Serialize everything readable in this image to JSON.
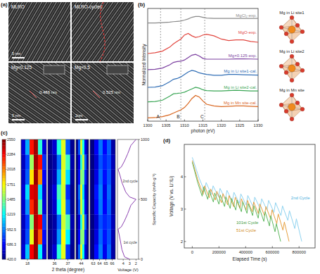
{
  "images": {
    "label": "(a)",
    "tiles": [
      {
        "label": "MLRO",
        "scale_bar": "5 nm"
      },
      {
        "label": "MLRO-cycled"
      },
      {
        "label": "Mg×0.125",
        "spacing": "0.486 nm",
        "scale_bar": "5 nm"
      },
      {
        "label": "Mg×0.5",
        "spacing": "0.525 nm",
        "scale_bar": "2nm"
      }
    ]
  },
  "chart_data": [
    {
      "type": "line",
      "title": "(b)",
      "x_label": "photon (eV)",
      "y_label": "Normalized Intensity",
      "x": [
        1300,
        1302,
        1304,
        1306,
        1307,
        1308,
        1309,
        1310,
        1311,
        1312,
        1313,
        1314,
        1315,
        1316,
        1318,
        1320,
        1322,
        1324,
        1326,
        1328,
        1330
      ],
      "xlim": [
        1300,
        1330
      ],
      "xticks": [
        1300,
        1305,
        1310,
        1315,
        1320,
        1325,
        1330
      ],
      "ylim": [
        0,
        7
      ],
      "yticks": [],
      "tick_labels": "x",
      "series": [
        {
          "name": "MgCl₂-exp.",
          "color": "#8a8a8a",
          "values": [
            6.1,
            6.1,
            6.12,
            6.15,
            6.18,
            6.2,
            6.22,
            6.28,
            6.35,
            6.45,
            6.5,
            6.5,
            6.45,
            6.4,
            6.38,
            6.38,
            6.38,
            6.38,
            6.38,
            6.38,
            6.38
          ]
        },
        {
          "name": "MgO-exp.",
          "color": "#e2463f",
          "values": [
            4.2,
            4.25,
            4.35,
            4.6,
            4.8,
            4.95,
            5.1,
            5.35,
            5.45,
            5.3,
            5.2,
            5.25,
            5.35,
            5.4,
            5.3,
            5.1,
            5.0,
            5.05,
            5.05,
            4.95,
            4.9
          ]
        },
        {
          "name": "Mg×0.125-exp.",
          "color": "#7b3fa0",
          "values": [
            3.2,
            3.22,
            3.3,
            3.5,
            3.65,
            3.7,
            3.72,
            3.8,
            3.95,
            4.1,
            4.15,
            4.05,
            3.9,
            3.85,
            3.85,
            3.85,
            3.85,
            3.87,
            3.87,
            3.86,
            3.85
          ]
        },
        {
          "name": "Mg in Li site1-cal.",
          "color": "#2f6db5",
          "values": [
            2.1,
            2.12,
            2.2,
            2.45,
            2.6,
            2.65,
            2.75,
            2.9,
            3.05,
            3.15,
            3.1,
            3.0,
            2.95,
            2.9,
            2.85,
            2.85,
            2.9,
            2.9,
            2.88,
            2.87,
            2.86
          ]
        },
        {
          "name": "Mg in Li site2-cal.",
          "color": "#3aa655",
          "values": [
            1.2,
            1.22,
            1.3,
            1.55,
            1.7,
            1.72,
            1.75,
            1.8,
            1.9,
            2.0,
            2.1,
            2.05,
            1.95,
            1.9,
            1.88,
            1.88,
            1.9,
            1.92,
            1.9,
            1.88,
            1.88
          ]
        },
        {
          "name": "Mg in Mn site-cal.",
          "color": "#d9661f",
          "values": [
            0.2,
            0.22,
            0.28,
            0.4,
            0.5,
            0.6,
            0.7,
            0.85,
            1.1,
            1.4,
            1.6,
            1.5,
            1.25,
            1.05,
            0.95,
            0.9,
            0.92,
            0.95,
            0.95,
            0.92,
            0.9
          ]
        }
      ],
      "vlines": [
        {
          "x": 1303.5,
          "label": "A"
        },
        {
          "x": 1309,
          "label": "B"
        },
        {
          "x": 1315.5,
          "label": "C"
        }
      ],
      "structures": [
        "Mg in Li site1",
        "Mg in Li site2",
        "Mg in Mn site"
      ]
    },
    {
      "type": "heatmap",
      "title": "(c)",
      "x_label": "2 theta (degree)",
      "ylim": [
        0,
        1000
      ],
      "y_edges": [
        0,
        125,
        250,
        375,
        500,
        625,
        750,
        875,
        1000
      ],
      "windows": [
        {
          "xlim": [
            17.5,
            19.5
          ],
          "x_edges": [
            17.5,
            17.83,
            18.17,
            18.5,
            18.83,
            19.17,
            19.5
          ],
          "xticks": [
            18
          ],
          "cells": [
            [
              600,
              1100,
              2300,
              2500,
              1200,
              600
            ],
            [
              560,
              850,
              1700,
              2500,
              2100,
              700
            ],
            [
              550,
              800,
              1500,
              2450,
              2300,
              800
            ],
            [
              580,
              1000,
              2200,
              2450,
              1400,
              620
            ],
            [
              600,
              1150,
              2350,
              2400,
              1150,
              600
            ],
            [
              560,
              880,
              1800,
              2500,
              2000,
              680
            ],
            [
              550,
              820,
              1550,
              2480,
              2250,
              780
            ],
            [
              600,
              1050,
              2250,
              2480,
              1300,
              620
            ]
          ]
        },
        {
          "xlim": [
            35.5,
            37.5
          ],
          "x_edges": [
            35.5,
            35.83,
            36.17,
            36.5,
            36.83,
            37.17,
            37.5
          ],
          "xticks": [
            36,
            37
          ],
          "cells": [
            [
              450,
              600,
              1300,
              1700,
              800,
              460
            ],
            [
              440,
              520,
              1000,
              1750,
              1200,
              480
            ],
            [
              440,
              500,
              900,
              1650,
              1400,
              520
            ],
            [
              450,
              580,
              1250,
              1700,
              900,
              460
            ],
            [
              460,
              620,
              1350,
              1650,
              780,
              450
            ],
            [
              440,
              530,
              1050,
              1700,
              1150,
              480
            ],
            [
              440,
              500,
              920,
              1680,
              1350,
              510
            ],
            [
              450,
              590,
              1280,
              1690,
              880,
              460
            ]
          ]
        },
        {
          "xlim": [
            43.5,
            44.7
          ],
          "x_edges": [
            43.5,
            43.7,
            43.9,
            44.1,
            44.3,
            44.5,
            44.7
          ],
          "xticks": [
            44
          ],
          "cells": [
            [
              470,
              900,
              1700,
              1200,
              600,
              450
            ],
            [
              450,
              700,
              1500,
              1500,
              750,
              450
            ],
            [
              440,
              620,
              1300,
              1650,
              900,
              460
            ],
            [
              460,
              850,
              1650,
              1300,
              650,
              450
            ],
            [
              470,
              920,
              1700,
              1150,
              600,
              450
            ],
            [
              450,
              720,
              1520,
              1450,
              760,
              450
            ],
            [
              440,
              640,
              1320,
              1620,
              880,
              460
            ],
            [
              460,
              860,
              1660,
              1250,
              640,
              450
            ]
          ]
        },
        {
          "xlim": [
            62.5,
            66.5
          ],
          "x_edges": [
            62.5,
            63.17,
            63.83,
            64.5,
            65.17,
            65.83,
            66.5
          ],
          "xticks": [
            63,
            64,
            65,
            66
          ],
          "cells": [
            [
              430,
              700,
              950,
              650,
              900,
              500
            ],
            [
              430,
              620,
              900,
              720,
              850,
              520
            ],
            [
              430,
              580,
              850,
              760,
              820,
              540
            ],
            [
              430,
              680,
              940,
              680,
              880,
              500
            ],
            [
              430,
              720,
              960,
              640,
              910,
              500
            ],
            [
              430,
              630,
              910,
              710,
              860,
              520
            ],
            [
              430,
              590,
              860,
              750,
              830,
              540
            ],
            [
              430,
              670,
              930,
              690,
              880,
              500
            ]
          ]
        }
      ],
      "colorbar": {
        "range": [
          420,
          2550
        ],
        "ticks": [
          {
            "value": 420,
            "label": "420.0"
          },
          686.3,
          952.5,
          1219,
          1485,
          1751,
          2018,
          2284,
          2550
        ]
      }
    },
    {
      "type": "line",
      "x_label": "Voltage (V)",
      "y_label": "Specific Capacity (mAh·g⁻¹)",
      "xlim": [
        4.9,
        1.6
      ],
      "xticks": [
        2,
        3,
        4
      ],
      "ylim": [
        0,
        1000
      ],
      "yticks": [
        0,
        500,
        1000
      ],
      "x": [
        3.0,
        3.8,
        4.2,
        4.5,
        4.8,
        4.3,
        3.8,
        3.3,
        2.8,
        2.0,
        3.0,
        3.6,
        4.2,
        4.5,
        4.8,
        4.3,
        3.8,
        3.3,
        2.8,
        2.0
      ],
      "series": [
        {
          "color": "#8a3fb0",
          "values": [
            0,
            20,
            80,
            170,
            250,
            270,
            320,
            380,
            450,
            500,
            520,
            560,
            640,
            700,
            750,
            770,
            820,
            880,
            950,
            1000
          ]
        }
      ],
      "annotations": [
        {
          "text": "1st cycle",
          "x": 2.9,
          "y": 130
        },
        {
          "text": "2nd cycle",
          "x": 2.9,
          "y": 640
        }
      ]
    },
    {
      "type": "line",
      "title": "(d)",
      "x_label": "Elapsed Time (s)",
      "y_label": "Voltage (V vs. Li⁺/Li)",
      "xlim": [
        -60000,
        920000
      ],
      "xticks": [
        0,
        200000,
        400000,
        600000,
        800000
      ],
      "ylim": [
        1.8,
        5
      ],
      "yticks": [
        2,
        3,
        4
      ],
      "series": [
        {
          "name": "2nd Cycle",
          "color": "#8fd3f0",
          "x": [
            0,
            40000,
            52000,
            92000,
            104000,
            144000,
            156000,
            196000,
            208000,
            248000,
            260000,
            300000,
            312000,
            352000,
            364000,
            404000,
            416000,
            456000,
            468000,
            508000,
            520000,
            560000,
            572000,
            612000,
            624000,
            664000,
            676000,
            716000,
            728000,
            768000,
            780000,
            820000
          ],
          "values": [
            4.6,
            4.1,
            3.95,
            3.55,
            3.82,
            3.45,
            3.72,
            3.38,
            3.64,
            3.3,
            3.58,
            3.24,
            3.52,
            3.18,
            3.47,
            3.12,
            3.42,
            3.07,
            3.37,
            3.02,
            3.32,
            2.97,
            3.27,
            2.9,
            3.2,
            2.8,
            3.1,
            2.65,
            2.95,
            2.4,
            2.7,
            2.0
          ]
        },
        {
          "name": "51st Cycle",
          "color": "#e6a040",
          "x": [
            0,
            35000,
            46000,
            81000,
            92000,
            127000,
            138000,
            173000,
            184000,
            219000,
            230000,
            265000,
            276000,
            311000,
            322000,
            357000,
            368000,
            403000,
            414000,
            449000,
            460000,
            495000,
            506000,
            541000,
            552000,
            587000,
            598000,
            633000,
            644000,
            679000,
            690000,
            725000
          ],
          "values": [
            4.5,
            4.0,
            3.85,
            3.45,
            3.72,
            3.35,
            3.62,
            3.28,
            3.55,
            3.2,
            3.48,
            3.13,
            3.42,
            3.07,
            3.37,
            3.02,
            3.32,
            2.97,
            3.27,
            2.92,
            3.22,
            2.86,
            3.16,
            2.8,
            3.08,
            2.7,
            2.98,
            2.55,
            2.85,
            2.35,
            2.6,
            2.0
          ]
        },
        {
          "name": "101st Cycle",
          "color": "#5fb85f",
          "x": [
            0,
            32000,
            42000,
            74000,
            84000,
            116000,
            126000,
            158000,
            168000,
            200000,
            210000,
            242000,
            252000,
            284000,
            294000,
            326000,
            336000,
            368000,
            378000,
            410000,
            420000,
            452000,
            462000,
            494000,
            504000,
            536000,
            546000,
            578000,
            588000,
            620000,
            630000,
            662000
          ],
          "values": [
            4.45,
            3.95,
            3.8,
            3.4,
            3.68,
            3.3,
            3.58,
            3.22,
            3.5,
            3.15,
            3.44,
            3.08,
            3.38,
            3.02,
            3.33,
            2.97,
            3.28,
            2.92,
            3.23,
            2.87,
            3.17,
            2.8,
            3.1,
            2.72,
            3.02,
            2.62,
            2.92,
            2.48,
            2.8,
            2.3,
            2.55,
            2.0
          ]
        }
      ],
      "annotations": [
        {
          "text": "101st Cycle",
          "x": 330000,
          "y": 2.55,
          "color": "#3a9a3a"
        },
        {
          "text": "51st Cycle",
          "x": 330000,
          "y": 2.3,
          "color": "#d08a20"
        },
        {
          "text": "2nd Cycle",
          "x": 740000,
          "y": 3.3,
          "color": "#4aaedc"
        }
      ]
    }
  ]
}
